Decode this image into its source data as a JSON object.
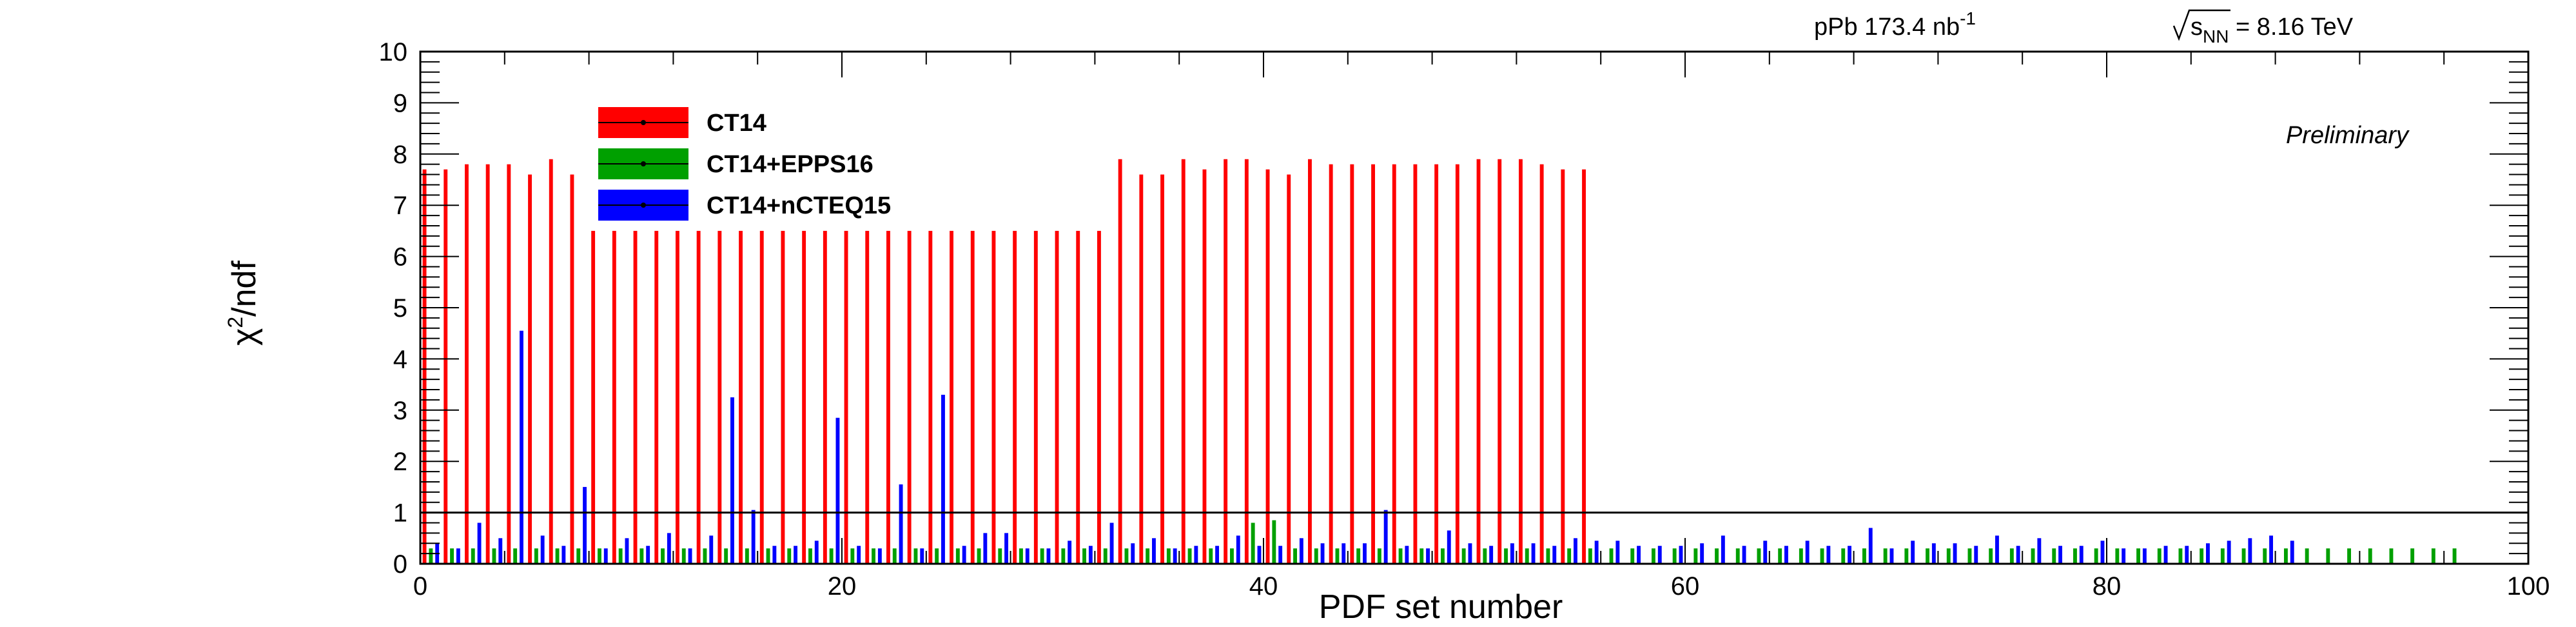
{
  "chart_data": {
    "type": "bar",
    "xlabel": "PDF set number",
    "ylabel_base": "χ",
    "ylabel_sup": "2",
    "ylabel_tail": "/ndf",
    "xlim": [
      0,
      100
    ],
    "ylim": [
      0,
      10
    ],
    "x_ticks": [
      0,
      20,
      40,
      60,
      80,
      100
    ],
    "y_ticks": [
      0,
      1,
      2,
      3,
      4,
      5,
      6,
      7,
      8,
      9,
      10
    ],
    "reference_line_y": 1,
    "annotations": {
      "lumi_prefix": "pPb 173.4 nb",
      "lumi_sup": "-1",
      "energy_base": "s",
      "energy_sub": "NN",
      "energy_value": " = 8.16 TeV",
      "preliminary": "Preliminary"
    },
    "legend_position": "top-left",
    "series": [
      {
        "name": "CT14",
        "color": "#ff0000",
        "x_start": 0,
        "values": [
          7.7,
          7.7,
          7.8,
          7.8,
          7.8,
          7.6,
          7.9,
          7.6,
          6.5,
          6.5,
          6.5,
          6.5,
          6.5,
          6.5,
          6.5,
          6.5,
          6.5,
          6.5,
          6.5,
          6.5,
          6.5,
          6.5,
          6.5,
          6.5,
          6.5,
          6.5,
          6.5,
          6.5,
          6.5,
          6.5,
          6.5,
          6.5,
          6.5,
          7.9,
          7.6,
          7.6,
          7.9,
          7.7,
          7.9,
          7.9,
          7.7,
          7.6,
          7.9,
          7.8,
          7.8,
          7.8,
          7.8,
          7.8,
          7.8,
          7.8,
          7.9,
          7.9,
          7.9,
          7.8,
          7.7,
          7.7
        ]
      },
      {
        "name": "CT14+EPPS16",
        "color": "#00a000",
        "x_start": 0,
        "values": [
          0.3,
          0.3,
          0.3,
          0.3,
          0.3,
          0.3,
          0.3,
          0.3,
          0.3,
          0.3,
          0.3,
          0.3,
          0.3,
          0.3,
          0.3,
          0.3,
          0.3,
          0.3,
          0.3,
          0.3,
          0.3,
          0.3,
          0.3,
          0.3,
          0.3,
          0.3,
          0.3,
          0.3,
          0.3,
          0.3,
          0.3,
          0.3,
          0.3,
          0.3,
          0.3,
          0.3,
          0.3,
          0.3,
          0.3,
          0.8,
          0.85,
          0.3,
          0.3,
          0.3,
          0.3,
          0.3,
          0.3,
          0.3,
          0.3,
          0.3,
          0.3,
          0.3,
          0.3,
          0.3,
          0.3,
          0.3,
          0.3,
          0.3,
          0.3,
          0.3,
          0.3,
          0.3,
          0.3,
          0.3,
          0.3,
          0.3,
          0.3,
          0.3,
          0.3,
          0.3,
          0.3,
          0.3,
          0.3,
          0.3,
          0.3,
          0.3,
          0.3,
          0.3,
          0.3,
          0.3,
          0.3,
          0.3,
          0.3,
          0.3,
          0.3,
          0.3,
          0.3,
          0.3,
          0.3,
          0.3,
          0.3,
          0.3,
          0.3,
          0.3,
          0.3,
          0.3,
          0.3
        ]
      },
      {
        "name": "CT14+nCTEQ15",
        "color": "#0000ff",
        "x_start": 0,
        "values": [
          0.4,
          0.3,
          0.8,
          0.5,
          4.55,
          0.55,
          0.35,
          1.5,
          0.3,
          0.5,
          0.35,
          0.6,
          0.3,
          0.55,
          3.25,
          1.05,
          0.35,
          0.35,
          0.45,
          2.85,
          0.35,
          0.3,
          1.55,
          0.3,
          3.3,
          0.35,
          0.6,
          0.6,
          0.3,
          0.3,
          0.45,
          0.35,
          0.8,
          0.4,
          0.5,
          0.3,
          0.35,
          0.35,
          0.55,
          0.35,
          0.35,
          0.5,
          0.4,
          0.4,
          0.4,
          1.05,
          0.35,
          0.3,
          0.65,
          0.4,
          0.35,
          0.4,
          0.4,
          0.35,
          0.5,
          0.45,
          0.45,
          0.35,
          0.35,
          0.35,
          0.4,
          0.55,
          0.35,
          0.45,
          0.35,
          0.45,
          0.35,
          0.35,
          0.7,
          0.3,
          0.45,
          0.4,
          0.4,
          0.35,
          0.55,
          0.35,
          0.5,
          0.35,
          0.35,
          0.45,
          0.3,
          0.3,
          0.35,
          0.35,
          0.4,
          0.45,
          0.5,
          0.55,
          0.45
        ]
      }
    ]
  }
}
